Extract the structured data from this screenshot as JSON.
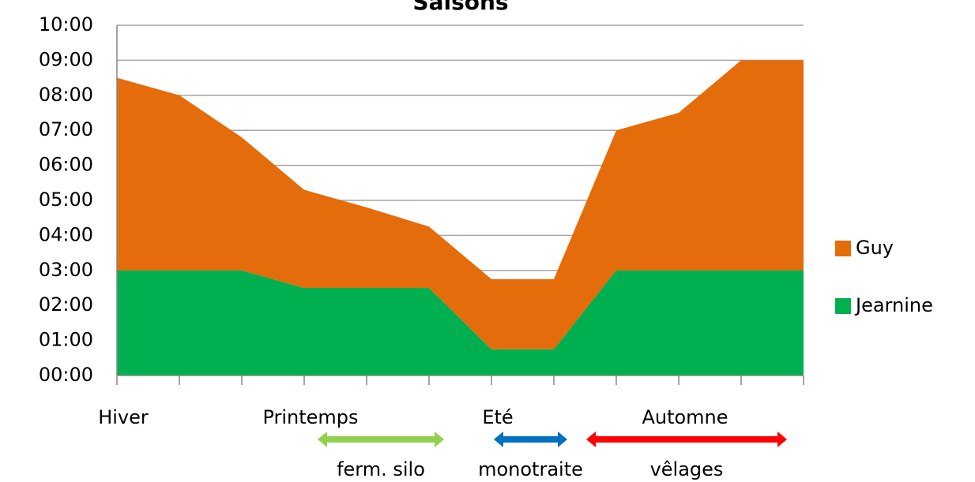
{
  "chart_data": {
    "type": "stacked_area",
    "title": "Saisons",
    "categories": [
      "Hiver",
      null,
      null,
      "Printemps",
      null,
      null,
      "Eté",
      null,
      null,
      "Automne",
      null,
      null
    ],
    "series": [
      {
        "name": "Jearnine",
        "color": "#00b050",
        "values": [
          3,
          3,
          3,
          2.5,
          2.5,
          2.5,
          0.75,
          0.75,
          3,
          3,
          3,
          3
        ]
      },
      {
        "name": "Guy",
        "color": "#e46c0a",
        "values": [
          5.5,
          5,
          3.8,
          2.8,
          2.3,
          1.75,
          2,
          2,
          4,
          4.5,
          6,
          6
        ]
      }
    ],
    "ylim": [
      0,
      10
    ],
    "yticks": [
      {
        "value": 0,
        "label": "00:00"
      },
      {
        "value": 1,
        "label": "01:00"
      },
      {
        "value": 2,
        "label": "02:00"
      },
      {
        "value": 3,
        "label": "03:00"
      },
      {
        "value": 4,
        "label": "04:00"
      },
      {
        "value": 5,
        "label": "05:00"
      },
      {
        "value": 6,
        "label": "06:00"
      },
      {
        "value": 7,
        "label": "07:00"
      },
      {
        "value": 8,
        "label": "08:00"
      },
      {
        "value": 9,
        "label": "09:00"
      },
      {
        "value": 10,
        "label": "10:00"
      }
    ],
    "grid": true,
    "legend": "right",
    "annotations": [
      {
        "text": "ferm. silo",
        "color": "#92d050"
      },
      {
        "text": "monotraite",
        "color": "#0070c0"
      },
      {
        "text": "vêlages",
        "color": "#ff0000"
      }
    ]
  }
}
